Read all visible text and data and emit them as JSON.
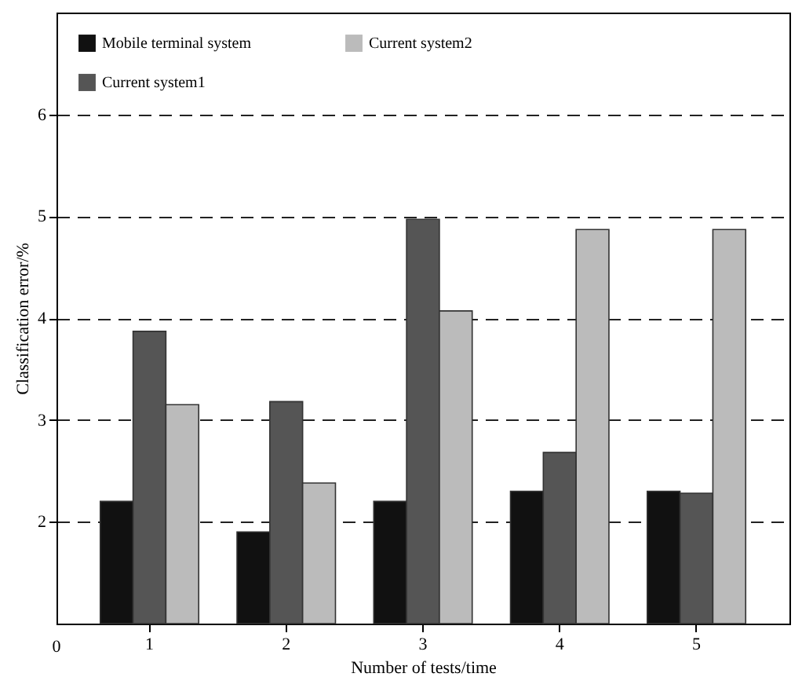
{
  "chart_data": {
    "type": "bar",
    "xlabel": "Number of tests/time",
    "ylabel": "Classification error/%",
    "categories": [
      "1",
      "2",
      "3",
      "4",
      "5"
    ],
    "series": [
      {
        "name": "Mobile terminal system",
        "color": "#111111",
        "values": [
          2.2,
          1.9,
          2.2,
          2.3,
          2.3
        ]
      },
      {
        "name": "Current system1",
        "color": "#555555",
        "values": [
          3.87,
          3.18,
          4.97,
          2.68,
          2.28
        ]
      },
      {
        "name": "Current system2",
        "color": "#bbbbbb",
        "values": [
          3.15,
          2.38,
          4.07,
          4.87,
          4.87
        ]
      }
    ],
    "ylim": [
      1,
      7
    ],
    "yticks": [
      2,
      3,
      4,
      5,
      6
    ],
    "grid": "y",
    "line_style": "dashed",
    "legend": "top left",
    "annotations": [
      "0"
    ]
  }
}
